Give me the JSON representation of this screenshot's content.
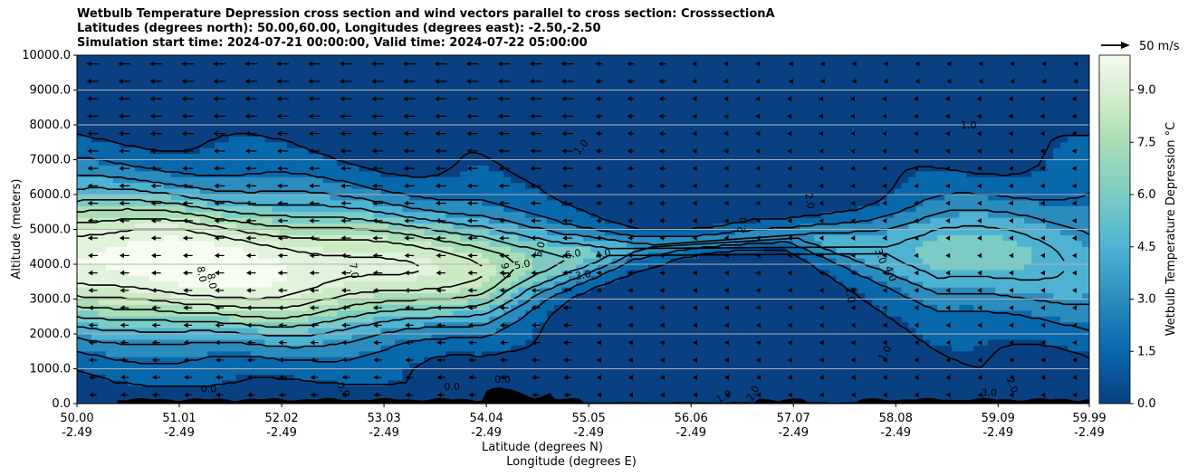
{
  "chart_data": {
    "type": "heatmap",
    "title_lines": [
      "Wetbulb Temperature Depression cross section and wind vectors parallel to cross section: CrosssectionA",
      "Latitudes (degrees north): 50.00,60.00, Longitudes (degrees east): -2.50,-2.50",
      "Simulation start time: 2024-07-21 00:00:00, Valid time: 2024-07-22 05:00:00"
    ],
    "ylabel": "Altitude (meters)",
    "xlabel_1": "Latitude (degrees N)",
    "xlabel_2": "Longitude (degrees E)",
    "ylim": [
      0,
      10000
    ],
    "y_ticks": [
      "0.0",
      "1000.0",
      "2000.0",
      "3000.0",
      "4000.0",
      "5000.0",
      "6000.0",
      "7000.0",
      "8000.0",
      "9000.0",
      "10000.0"
    ],
    "x_ticks_lat": [
      "50.00",
      "51.01",
      "52.02",
      "53.03",
      "54.04",
      "55.05",
      "56.06",
      "57.07",
      "58.08",
      "59.09",
      "59.99"
    ],
    "x_ticks_lon": [
      "-2.49",
      "-2.49",
      "-2.49",
      "-2.49",
      "-2.49",
      "-2.49",
      "-2.49",
      "-2.49",
      "-2.49",
      "-2.49",
      "-2.49"
    ],
    "x_tick_values": [
      50.0,
      51.01,
      52.02,
      53.03,
      54.04,
      55.05,
      56.06,
      57.07,
      58.08,
      59.09,
      59.99
    ],
    "xlim": [
      50.0,
      59.99
    ],
    "colorbar": {
      "label": "Wetbulb Temperature Depression °C",
      "ticks": [
        "0.0",
        "1.5",
        "3.0",
        "4.5",
        "6.0",
        "7.5",
        "9.0"
      ],
      "tick_values": [
        0,
        1.5,
        3.0,
        4.5,
        6.0,
        7.5,
        9.0
      ],
      "range": [
        0,
        10
      ],
      "colors": [
        "#084081",
        "#0868ac",
        "#2b8cbe",
        "#4eb3d3",
        "#7bccc4",
        "#a8ddb5",
        "#ccebc5",
        "#e0f3db",
        "#f7fcf0"
      ]
    },
    "wind_key_label": "50 m/s",
    "grid": "horizontal",
    "contour_labels": [
      "1.0",
      "1.0",
      "1.0",
      "2.0",
      "2.0",
      "3.0",
      "4.0",
      "5.0",
      "5.0",
      "6.0",
      "7.0",
      "8.0",
      "8.0",
      "9.0",
      "4.0",
      "3.0",
      "1.0",
      "0.0",
      "0.0",
      "0.0",
      "0.0",
      "1.0",
      "2.0",
      "1.0",
      "2.0",
      "3.0"
    ],
    "depression_profile": [
      {
        "lat": 50.0,
        "min": 1800,
        "max": 6600,
        "peak": 8.5
      },
      {
        "lat": 51.0,
        "min": 1600,
        "max": 6400,
        "peak": 9.2
      },
      {
        "lat": 52.0,
        "min": 1500,
        "max": 6200,
        "peak": 8.5
      },
      {
        "lat": 53.0,
        "min": 1700,
        "max": 6000,
        "peak": 7.5
      },
      {
        "lat": 54.0,
        "min": 2000,
        "max": 5800,
        "peak": 6.5
      },
      {
        "lat": 54.8,
        "min": 3000,
        "max": 5200,
        "peak": 4.5
      },
      {
        "lat": 55.5,
        "min": 4000,
        "max": 5000,
        "peak": 2.5
      },
      {
        "lat": 57.0,
        "min": 4500,
        "max": 5200,
        "peak": 2.0
      },
      {
        "lat": 58.5,
        "min": 2500,
        "max": 6000,
        "peak": 4.5
      },
      {
        "lat": 59.99,
        "min": 1500,
        "max": 6800,
        "peak": 3.0
      }
    ]
  }
}
